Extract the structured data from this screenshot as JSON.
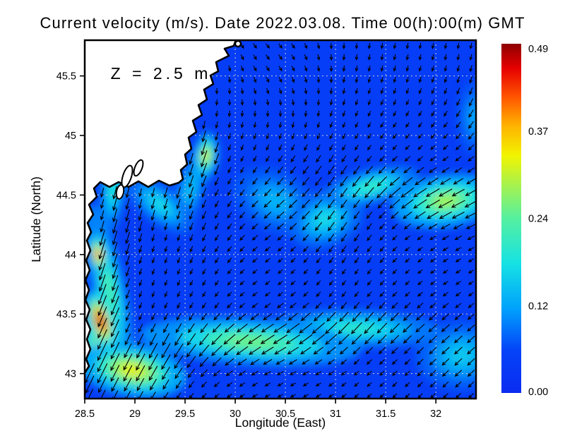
{
  "title": "Current velocity (m/s). Date 2022.03.08. Time 00(h):00(m) GMT",
  "colors": {
    "background": "#ffffff",
    "land": "#ffffff",
    "coastline": "#000000",
    "grid": "#cccccc",
    "frame": "#000000",
    "arrow": "#000000",
    "annotation_text": "#8f8f8f",
    "tick_text": "#000000"
  },
  "chart_data": {
    "type": "heatmap",
    "subtype": "ocean-current-vector-field",
    "title": "Current velocity (m/s). Date 2022.03.08. Time 00(h):00(m) GMT",
    "xlabel": "Longitude (East)",
    "ylabel": "Latitude (North)",
    "annotation": "Z = 2.5 m",
    "grid": true,
    "units": "m/s",
    "xlim": [
      28.5,
      32.4
    ],
    "ylim": [
      42.79,
      45.8
    ],
    "x_ticks": [
      {
        "v": 28.5,
        "label": "28.5"
      },
      {
        "v": 29.0,
        "label": "29"
      },
      {
        "v": 29.5,
        "label": "29.5"
      },
      {
        "v": 30.0,
        "label": "30"
      },
      {
        "v": 30.5,
        "label": "30.5"
      },
      {
        "v": 31.0,
        "label": "31"
      },
      {
        "v": 31.5,
        "label": "31.5"
      },
      {
        "v": 32.0,
        "label": "32"
      }
    ],
    "y_ticks": [
      {
        "v": 45.5,
        "label": "45.5"
      },
      {
        "v": 45.0,
        "label": "45"
      },
      {
        "v": 44.5,
        "label": "44.5"
      },
      {
        "v": 44.0,
        "label": "44"
      },
      {
        "v": 43.5,
        "label": "43.5"
      },
      {
        "v": 43.0,
        "label": "43"
      }
    ],
    "colorbar": {
      "min": 0.0,
      "max": 0.49,
      "ticks": [
        {
          "v": 0.0,
          "label": "0.00"
        },
        {
          "v": 0.1225,
          "label": "0.12"
        },
        {
          "v": 0.245,
          "label": "0.24"
        },
        {
          "v": 0.3675,
          "label": "0.37"
        },
        {
          "v": 0.49,
          "label": "0.49"
        }
      ],
      "colormap_stops": [
        {
          "t": 0.0,
          "c": "#0a2cf0"
        },
        {
          "t": 0.12,
          "c": "#0542f8"
        },
        {
          "t": 0.24,
          "c": "#00a0fc"
        },
        {
          "t": 0.37,
          "c": "#16e2e4"
        },
        {
          "t": 0.5,
          "c": "#55f0a0"
        },
        {
          "t": 0.6,
          "c": "#aaf24a"
        },
        {
          "t": 0.68,
          "c": "#f2f400"
        },
        {
          "t": 0.77,
          "c": "#ffae00"
        },
        {
          "t": 0.85,
          "c": "#ff5200"
        },
        {
          "t": 0.93,
          "c": "#e60000"
        },
        {
          "t": 1.0,
          "c": "#8e0000"
        }
      ]
    },
    "base_velocity": 0.045,
    "velocity_features": [
      {
        "lon": 28.66,
        "lat": 43.44,
        "mag": 0.49,
        "rx": 0.1,
        "ry": 0.2,
        "rot": -18
      },
      {
        "lon": 28.63,
        "lat": 44.0,
        "mag": 0.41,
        "rx": 0.07,
        "ry": 0.13,
        "rot": -8
      },
      {
        "lon": 28.74,
        "lat": 43.72,
        "mag": 0.24,
        "rx": 0.13,
        "ry": 0.55,
        "rot": -12
      },
      {
        "lon": 29.71,
        "lat": 44.83,
        "mag": 0.33,
        "rx": 0.09,
        "ry": 0.15,
        "rot": 5
      },
      {
        "lon": 28.97,
        "lat": 43.03,
        "mag": 0.34,
        "rx": 0.42,
        "ry": 0.17,
        "rot": 10
      },
      {
        "lon": 30.15,
        "lat": 43.27,
        "mag": 0.27,
        "rx": 0.85,
        "ry": 0.15,
        "rot": 4
      },
      {
        "lon": 31.2,
        "lat": 43.38,
        "mag": 0.21,
        "rx": 0.65,
        "ry": 0.12,
        "rot": 2
      },
      {
        "lon": 32.1,
        "lat": 44.45,
        "mag": 0.3,
        "rx": 0.42,
        "ry": 0.17,
        "rot": -8
      },
      {
        "lon": 31.35,
        "lat": 44.57,
        "mag": 0.22,
        "rx": 0.38,
        "ry": 0.11,
        "rot": -14
      },
      {
        "lon": 30.9,
        "lat": 44.3,
        "mag": 0.18,
        "rx": 0.3,
        "ry": 0.18,
        "rot": -20
      },
      {
        "lon": 29.25,
        "lat": 44.42,
        "mag": 0.18,
        "rx": 0.3,
        "ry": 0.12,
        "rot": 38
      },
      {
        "lon": 28.78,
        "lat": 44.55,
        "mag": 0.2,
        "rx": 0.1,
        "ry": 0.28,
        "rot": 5
      },
      {
        "lon": 32.25,
        "lat": 43.15,
        "mag": 0.16,
        "rx": 0.35,
        "ry": 0.22,
        "rot": 0
      },
      {
        "lon": 29.55,
        "lat": 44.55,
        "mag": 0.15,
        "rx": 0.12,
        "ry": 0.3,
        "rot": 15
      },
      {
        "lon": 28.62,
        "lat": 43.2,
        "mag": 0.3,
        "rx": 0.1,
        "ry": 0.25,
        "rot": -15
      },
      {
        "lon": 32.4,
        "lat": 45.15,
        "mag": 0.13,
        "rx": 0.15,
        "ry": 0.25,
        "rot": 0
      },
      {
        "lon": 30.4,
        "lat": 44.45,
        "mag": 0.14,
        "rx": 0.35,
        "ry": 0.2,
        "rot": 25
      }
    ],
    "flow_regions": [
      {
        "lon": 28.8,
        "lat": 43.7,
        "dx": -0.3,
        "dy": 0.95,
        "s": 0.8
      },
      {
        "lon": 28.9,
        "lat": 44.6,
        "dx": -0.25,
        "dy": 0.97,
        "s": 0.6
      },
      {
        "lon": 29.6,
        "lat": 45.1,
        "dx": -0.05,
        "dy": 1.0,
        "s": 0.7
      },
      {
        "lon": 30.3,
        "lat": 45.6,
        "dx": 0.95,
        "dy": 0.3,
        "s": 0.35
      },
      {
        "lon": 31.8,
        "lat": 45.4,
        "dx": -0.08,
        "dy": 1.0,
        "s": 0.8
      },
      {
        "lon": 30.0,
        "lat": 44.7,
        "dx": -0.5,
        "dy": 0.85,
        "s": 0.55
      },
      {
        "lon": 30.35,
        "lat": 44.35,
        "dx": -0.95,
        "dy": 0.1,
        "s": 0.4
      },
      {
        "lon": 31.9,
        "lat": 44.45,
        "dx": -0.98,
        "dy": -0.12,
        "s": 0.6
      },
      {
        "lon": 31.15,
        "lat": 44.1,
        "dx": -0.2,
        "dy": 0.98,
        "s": 0.4
      },
      {
        "lon": 31.4,
        "lat": 43.8,
        "dx": -0.6,
        "dy": 0.78,
        "s": 0.5
      },
      {
        "lon": 30.3,
        "lat": 43.15,
        "dx": -0.92,
        "dy": 0.4,
        "s": 0.55
      },
      {
        "lon": 29.0,
        "lat": 43.1,
        "dx": -0.55,
        "dy": 0.83,
        "s": 0.45
      },
      {
        "lon": 32.2,
        "lat": 43.2,
        "dx": -0.7,
        "dy": 0.7,
        "s": 0.7
      }
    ]
  }
}
